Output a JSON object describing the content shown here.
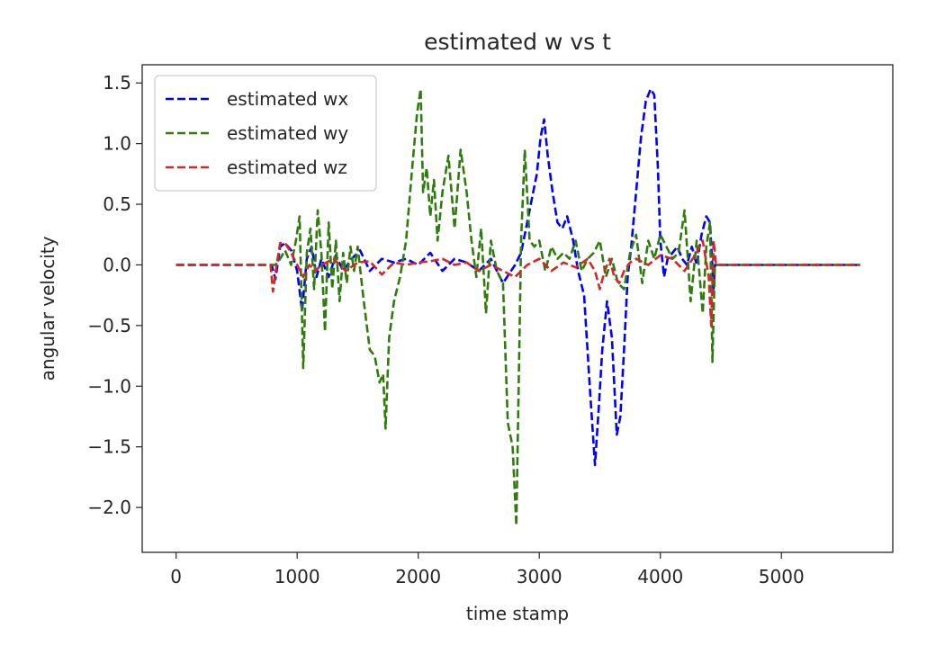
{
  "chart_data": {
    "type": "line",
    "title": "estimated w vs t",
    "xlabel": "time stamp",
    "ylabel": "angular velocity",
    "xlim": [
      -280,
      5920
    ],
    "ylim": [
      -2.37,
      1.65
    ],
    "xticks": [
      0,
      1000,
      2000,
      3000,
      4000,
      5000
    ],
    "xtick_labels": [
      "0",
      "1000",
      "2000",
      "3000",
      "4000",
      "5000"
    ],
    "yticks": [
      1.5,
      1.0,
      0.5,
      0.0,
      -0.5,
      -1.0,
      -1.5,
      -2.0
    ],
    "ytick_labels": [
      "1.5",
      "1.0",
      "0.5",
      "0.0",
      "−0.5",
      "−1.0",
      "−1.5",
      "−2.0"
    ],
    "grid": false,
    "legend_position": "top-left",
    "series": [
      {
        "name": "estimated wx",
        "color": "#0000ff",
        "x": [
          0,
          790,
          820,
          860,
          900,
          950,
          1000,
          1040,
          1080,
          1120,
          1160,
          1200,
          1260,
          1320,
          1380,
          1450,
          1520,
          1600,
          1700,
          1800,
          1900,
          2000,
          2100,
          2200,
          2300,
          2400,
          2500,
          2600,
          2700,
          2800,
          2850,
          2900,
          2940,
          2980,
          3010,
          3040,
          3070,
          3110,
          3150,
          3190,
          3230,
          3280,
          3320,
          3370,
          3420,
          3460,
          3490,
          3520,
          3560,
          3600,
          3640,
          3670,
          3700,
          3730,
          3760,
          3800,
          3840,
          3880,
          3920,
          3950,
          3980,
          4000,
          4030,
          4060,
          4100,
          4140,
          4180,
          4220,
          4260,
          4300,
          4340,
          4380,
          4410,
          4440,
          4450,
          4600,
          5000,
          5650
        ],
        "y": [
          0.0,
          0.0,
          -0.12,
          0.15,
          0.18,
          0.12,
          -0.05,
          -0.38,
          0.05,
          0.15,
          -0.1,
          0.05,
          -0.1,
          0.08,
          -0.05,
          0.05,
          0.12,
          -0.05,
          0.05,
          0.02,
          0.05,
          0.0,
          0.1,
          -0.05,
          0.05,
          0.02,
          -0.05,
          0.05,
          -0.15,
          0.0,
          0.1,
          0.35,
          0.55,
          0.75,
          1.05,
          1.2,
          0.9,
          0.6,
          0.35,
          0.3,
          0.4,
          0.2,
          -0.05,
          -0.25,
          -1.05,
          -1.65,
          -1.2,
          -0.7,
          -0.3,
          -0.6,
          -1.4,
          -1.25,
          -0.7,
          -0.1,
          0.15,
          0.6,
          1.05,
          1.35,
          1.45,
          1.4,
          0.8,
          0.2,
          -0.1,
          0.05,
          0.1,
          0.15,
          0.05,
          0.0,
          0.15,
          0.0,
          0.25,
          0.4,
          0.35,
          -0.2,
          0.0,
          0.0,
          0.0,
          0.0
        ]
      },
      {
        "name": "estimated wy",
        "color": "#2e7d0c",
        "x": [
          0,
          790,
          820,
          860,
          900,
          950,
          990,
          1020,
          1050,
          1080,
          1110,
          1140,
          1170,
          1200,
          1230,
          1260,
          1290,
          1320,
          1350,
          1380,
          1410,
          1440,
          1470,
          1500,
          1550,
          1600,
          1640,
          1680,
          1710,
          1730,
          1760,
          1800,
          1850,
          1900,
          1950,
          1990,
          2020,
          2040,
          2070,
          2100,
          2130,
          2160,
          2200,
          2250,
          2300,
          2350,
          2400,
          2440,
          2480,
          2520,
          2560,
          2600,
          2650,
          2700,
          2740,
          2780,
          2810,
          2830,
          2850,
          2880,
          2920,
          2960,
          3000,
          3050,
          3100,
          3150,
          3200,
          3250,
          3300,
          3350,
          3400,
          3450,
          3500,
          3550,
          3600,
          3650,
          3700,
          3750,
          3800,
          3850,
          3900,
          3950,
          4000,
          4050,
          4100,
          4150,
          4200,
          4250,
          4300,
          4350,
          4380,
          4410,
          4430,
          4450,
          4600,
          5000,
          5650
        ],
        "y": [
          0.0,
          0.0,
          0.0,
          0.05,
          0.12,
          0.0,
          0.2,
          0.4,
          -0.85,
          0.1,
          0.3,
          -0.2,
          0.45,
          0.1,
          -0.55,
          0.35,
          -0.2,
          0.2,
          -0.3,
          0.1,
          -0.15,
          0.15,
          -0.05,
          0.15,
          -0.3,
          -0.7,
          -0.75,
          -0.97,
          -0.9,
          -1.35,
          -0.6,
          -0.3,
          -0.1,
          0.2,
          0.8,
          1.25,
          1.45,
          0.6,
          0.8,
          0.4,
          0.7,
          0.2,
          0.6,
          0.9,
          0.3,
          0.95,
          0.6,
          0.2,
          -0.1,
          0.3,
          -0.4,
          0.2,
          -0.05,
          -0.15,
          -1.3,
          -1.5,
          -2.15,
          -1.0,
          0.2,
          0.95,
          0.2,
          0.15,
          0.2,
          -0.05,
          0.15,
          0.05,
          0.1,
          0.05,
          0.2,
          -0.05,
          0.05,
          0.1,
          0.2,
          -0.1,
          0.05,
          -0.15,
          -0.2,
          0.1,
          0.25,
          -0.15,
          0.2,
          0.05,
          0.25,
          0.15,
          0.05,
          0.1,
          0.45,
          -0.3,
          0.2,
          -0.4,
          0.15,
          0.35,
          -0.8,
          0.0,
          0.0,
          0.0,
          0.0
        ]
      },
      {
        "name": "estimated wz",
        "color": "#d62728",
        "x": [
          0,
          780,
          800,
          830,
          860,
          900,
          950,
          1000,
          1050,
          1100,
          1150,
          1200,
          1300,
          1400,
          1500,
          1600,
          1700,
          1800,
          1900,
          2000,
          2100,
          2200,
          2300,
          2400,
          2500,
          2600,
          2700,
          2800,
          2900,
          3000,
          3100,
          3200,
          3300,
          3400,
          3460,
          3500,
          3540,
          3580,
          3620,
          3660,
          3700,
          3750,
          3800,
          3900,
          4000,
          4100,
          4200,
          4300,
          4350,
          4400,
          4420,
          4440,
          4460,
          4600,
          5000,
          5650
        ],
        "y": [
          0.0,
          0.0,
          -0.22,
          0.0,
          0.18,
          0.18,
          0.1,
          0.0,
          -0.1,
          0.0,
          -0.05,
          0.0,
          0.05,
          -0.05,
          0.02,
          0.03,
          -0.08,
          0.02,
          0.0,
          0.02,
          0.03,
          0.05,
          0.0,
          0.02,
          -0.05,
          0.0,
          -0.05,
          -0.1,
          0.0,
          0.05,
          -0.05,
          0.02,
          -0.02,
          0.05,
          -0.05,
          -0.2,
          -0.05,
          0.05,
          -0.1,
          -0.15,
          -0.05,
          0.02,
          0.05,
          0.0,
          0.08,
          0.05,
          -0.05,
          0.1,
          0.2,
          -0.1,
          -0.5,
          0.2,
          0.0,
          0.0,
          0.0,
          0.0
        ]
      }
    ]
  }
}
